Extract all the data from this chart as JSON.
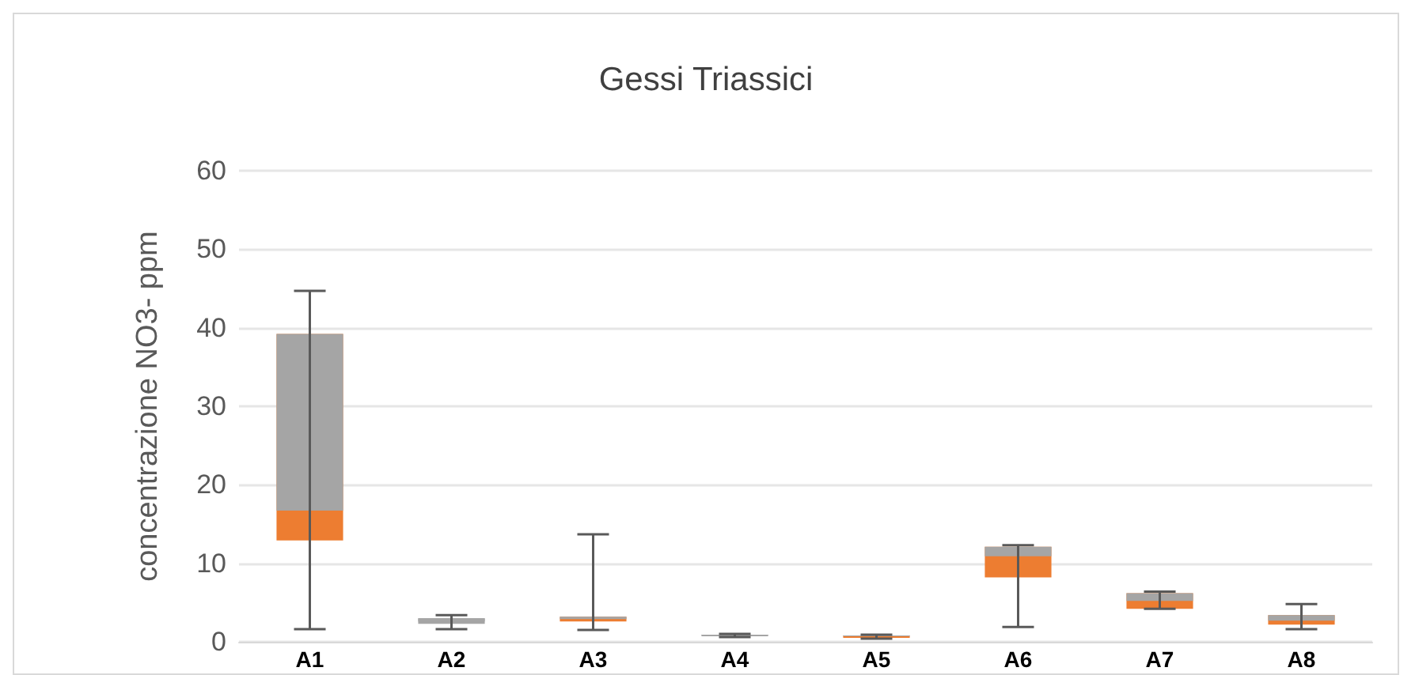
{
  "chart_data": {
    "type": "box",
    "title": "Gessi Triassici",
    "ylabel": "concentrazione NO3- ppm",
    "categories": [
      "A1",
      "A2",
      "A3",
      "A4",
      "A5",
      "A6",
      "A7",
      "A8"
    ],
    "series": [
      {
        "color": "#a5a5a5",
        "colors": [
          "#ed7d31",
          "#a5a5a5",
          "#ed7d31",
          "#a5a5a5",
          "#ed7d31",
          "#ed7d31",
          "#ed7d31",
          "#ed7d31"
        ],
        "boxes": [
          {
            "low": 1.6,
            "q1": 12.9,
            "median": 16.7,
            "q3": 39.2,
            "high": 44.7
          },
          {
            "low": 1.6,
            "q1": 2.3,
            "median": 2.6,
            "q3": 3.0,
            "high": 3.4
          },
          {
            "low": 1.5,
            "q1": 2.6,
            "median": 2.9,
            "q3": 3.2,
            "high": 13.7
          },
          {
            "low": 0.6,
            "q1": 0.7,
            "median": 0.8,
            "q3": 0.9,
            "high": 1.0
          },
          {
            "low": 0.4,
            "q1": 0.5,
            "median": 0.7,
            "q3": 0.8,
            "high": 0.9
          },
          {
            "low": 1.9,
            "q1": 8.2,
            "median": 10.9,
            "q3": 12.1,
            "high": 12.3
          },
          {
            "low": 4.2,
            "q1": 4.2,
            "median": 5.2,
            "q3": 6.2,
            "high": 6.4
          },
          {
            "low": 1.6,
            "q1": 2.2,
            "median": 2.7,
            "q3": 3.4,
            "high": 4.8
          }
        ]
      }
    ],
    "ylim": [
      0,
      60
    ],
    "yticks": [
      0,
      10,
      20,
      30,
      40,
      50,
      60
    ],
    "grid": "y"
  }
}
